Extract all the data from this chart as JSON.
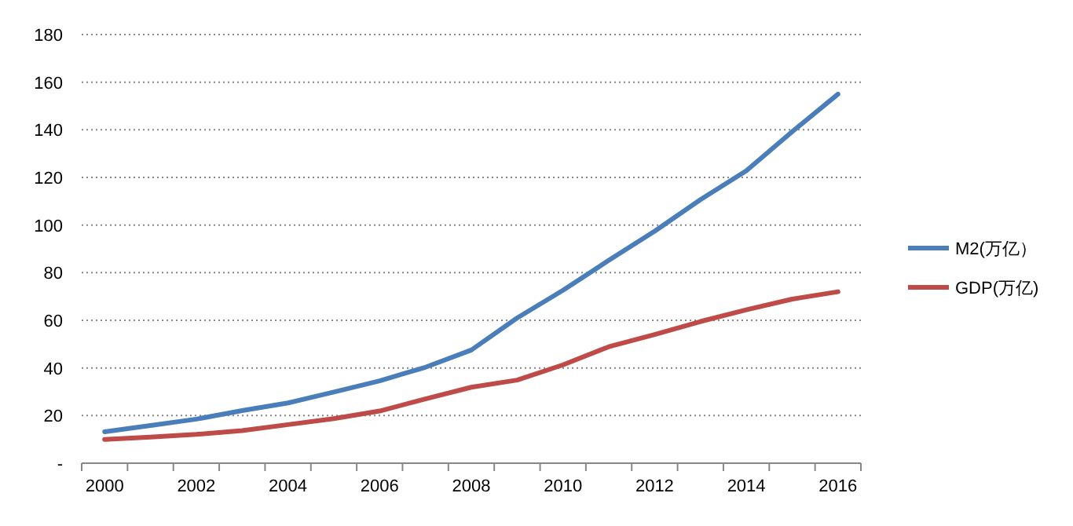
{
  "chart_data": {
    "type": "line",
    "categories": [
      "2000",
      null,
      "2002",
      null,
      "2004",
      null,
      "2006",
      null,
      "2008",
      null,
      "2010",
      null,
      "2012",
      null,
      "2014",
      null,
      "2016"
    ],
    "series": [
      {
        "name": "M2(万亿）",
        "color": "#4a7ebb",
        "values": [
          13.2,
          15.8,
          18.5,
          22.1,
          25.3,
          29.9,
          34.6,
          40.3,
          47.5,
          61,
          72.6,
          85.2,
          97.4,
          110.7,
          122.8,
          139.2,
          155
        ]
      },
      {
        "name": "GDP(万亿)",
        "color": "#be4b48",
        "values": [
          10,
          11,
          12.1,
          13.7,
          16.2,
          18.7,
          21.9,
          27,
          31.9,
          34.9,
          41.3,
          48.9,
          54,
          59.5,
          64.4,
          68.9,
          72
        ]
      }
    ],
    "ylim": [
      0,
      180
    ],
    "yticks": [
      {
        "value": 0,
        "label": "-"
      },
      20,
      40,
      60,
      80,
      100,
      120,
      140,
      160,
      180
    ],
    "grid": "y",
    "legend": "right",
    "marker": "none",
    "line_style": "solid"
  }
}
